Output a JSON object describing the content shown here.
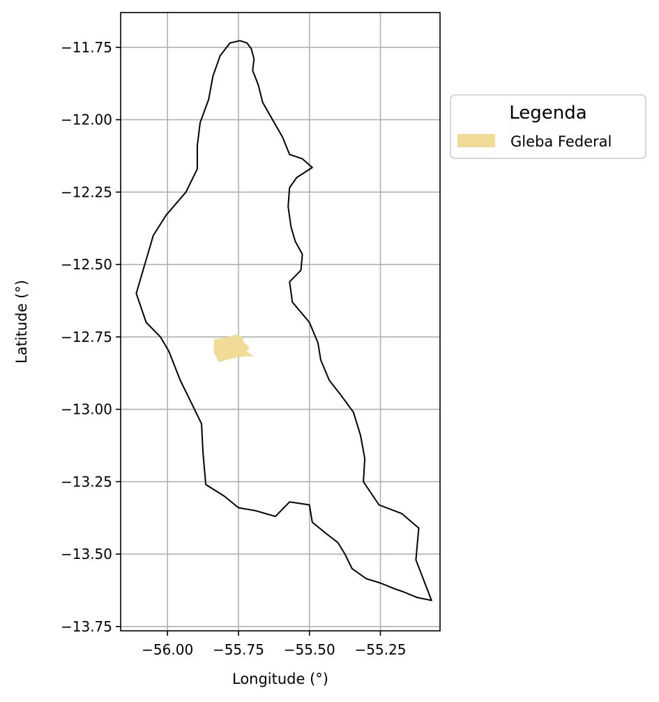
{
  "chart_data": {
    "type": "map",
    "xlabel": "Longitude (°)",
    "ylabel": "Latitude (°)",
    "xlim": [
      -56.165,
      -55.04
    ],
    "ylim": [
      -13.765,
      -11.63
    ],
    "grid": true,
    "x_ticks": [
      -56.0,
      -55.75,
      -55.5,
      -55.25
    ],
    "x_tick_labels": [
      "−56.00",
      "−55.75",
      "−55.50",
      "−55.25"
    ],
    "y_ticks": [
      -11.75,
      -12.0,
      -12.25,
      -12.5,
      -12.75,
      -13.0,
      -13.25,
      -13.5,
      -13.75
    ],
    "y_tick_labels": [
      "−11.75",
      "−12.00",
      "−12.25",
      "−12.50",
      "−12.75",
      "−13.00",
      "−13.25",
      "−13.50",
      "−13.75"
    ],
    "legend": {
      "title": "Legenda",
      "placement": "outside-right-top",
      "entries": [
        {
          "label": "Gleba Federal",
          "color": "#f0dc96"
        }
      ]
    },
    "layers": [
      {
        "name": "Boundary",
        "geometry": "polygon",
        "stroke": "#000000",
        "fill": "none",
        "coordinates": [
          [
            -55.745,
            -11.727
          ],
          [
            -55.72,
            -11.735
          ],
          [
            -55.705,
            -11.755
          ],
          [
            -55.695,
            -11.79
          ],
          [
            -55.7,
            -11.83
          ],
          [
            -55.68,
            -11.88
          ],
          [
            -55.665,
            -11.94
          ],
          [
            -55.63,
            -12.0
          ],
          [
            -55.595,
            -12.06
          ],
          [
            -55.57,
            -12.12
          ],
          [
            -55.525,
            -12.135
          ],
          [
            -55.49,
            -12.165
          ],
          [
            -55.545,
            -12.2
          ],
          [
            -55.57,
            -12.235
          ],
          [
            -55.575,
            -12.3
          ],
          [
            -55.565,
            -12.37
          ],
          [
            -55.55,
            -12.42
          ],
          [
            -55.525,
            -12.465
          ],
          [
            -55.53,
            -12.52
          ],
          [
            -55.57,
            -12.56
          ],
          [
            -55.56,
            -12.63
          ],
          [
            -55.5,
            -12.7
          ],
          [
            -55.47,
            -12.77
          ],
          [
            -55.46,
            -12.83
          ],
          [
            -55.43,
            -12.9
          ],
          [
            -55.39,
            -12.95
          ],
          [
            -55.345,
            -13.01
          ],
          [
            -55.32,
            -13.09
          ],
          [
            -55.305,
            -13.17
          ],
          [
            -55.31,
            -13.25
          ],
          [
            -55.255,
            -13.33
          ],
          [
            -55.175,
            -13.36
          ],
          [
            -55.115,
            -13.41
          ],
          [
            -55.125,
            -13.52
          ],
          [
            -55.07,
            -13.66
          ],
          [
            -55.12,
            -13.65
          ],
          [
            -55.17,
            -13.63
          ],
          [
            -55.2,
            -13.62
          ],
          [
            -55.25,
            -13.6
          ],
          [
            -55.3,
            -13.585
          ],
          [
            -55.35,
            -13.55
          ],
          [
            -55.375,
            -13.5
          ],
          [
            -55.4,
            -13.46
          ],
          [
            -55.44,
            -13.43
          ],
          [
            -55.49,
            -13.39
          ],
          [
            -55.5,
            -13.33
          ],
          [
            -55.57,
            -13.32
          ],
          [
            -55.62,
            -13.37
          ],
          [
            -55.69,
            -13.35
          ],
          [
            -55.75,
            -13.34
          ],
          [
            -55.8,
            -13.3
          ],
          [
            -55.865,
            -13.26
          ],
          [
            -55.875,
            -13.15
          ],
          [
            -55.88,
            -13.05
          ],
          [
            -55.915,
            -12.98
          ],
          [
            -55.955,
            -12.9
          ],
          [
            -55.995,
            -12.8
          ],
          [
            -56.025,
            -12.75
          ],
          [
            -56.075,
            -12.7
          ],
          [
            -56.11,
            -12.6
          ],
          [
            -56.08,
            -12.5
          ],
          [
            -56.05,
            -12.4
          ],
          [
            -56.005,
            -12.33
          ],
          [
            -55.935,
            -12.25
          ],
          [
            -55.895,
            -12.17
          ],
          [
            -55.895,
            -12.09
          ],
          [
            -55.885,
            -12.01
          ],
          [
            -55.855,
            -11.93
          ],
          [
            -55.84,
            -11.85
          ],
          [
            -55.815,
            -11.78
          ],
          [
            -55.78,
            -11.735
          ]
        ]
      },
      {
        "name": "Gleba Federal",
        "geometry": "polygon",
        "fill": "#f0dc96",
        "coordinates": [
          [
            -55.835,
            -12.758
          ],
          [
            -55.795,
            -12.752
          ],
          [
            -55.755,
            -12.741
          ],
          [
            -55.735,
            -12.752
          ],
          [
            -55.73,
            -12.77
          ],
          [
            -55.712,
            -12.785
          ],
          [
            -55.72,
            -12.8
          ],
          [
            -55.695,
            -12.818
          ],
          [
            -55.725,
            -12.816
          ],
          [
            -55.775,
            -12.825
          ],
          [
            -55.82,
            -12.838
          ],
          [
            -55.838,
            -12.8
          ]
        ]
      }
    ]
  }
}
